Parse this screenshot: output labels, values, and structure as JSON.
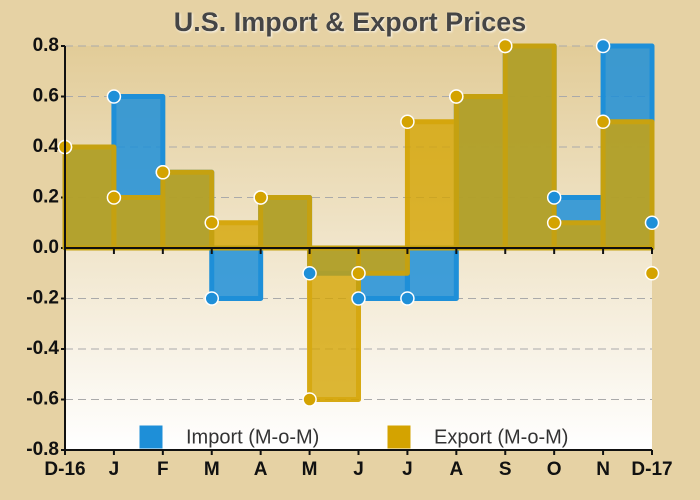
{
  "chart_data": {
    "type": "step-area",
    "title": "U.S. Import & Export Prices",
    "categories": [
      "D-16",
      "J",
      "F",
      "M",
      "A",
      "M",
      "J",
      "J",
      "A",
      "S",
      "O",
      "N",
      "D-17"
    ],
    "series": [
      {
        "name": "Import (M-o-M)",
        "color": "#1e8fd8",
        "values": [
          0.4,
          0.6,
          0.3,
          -0.2,
          0.2,
          -0.1,
          -0.2,
          -0.2,
          0.6,
          0.8,
          0.2,
          0.8,
          0.1
        ]
      },
      {
        "name": "Export (M-o-M)",
        "color": "#d4a300",
        "values": [
          0.4,
          0.2,
          0.3,
          0.1,
          0.2,
          -0.6,
          -0.1,
          0.5,
          0.6,
          0.8,
          0.1,
          0.5,
          -0.1
        ]
      }
    ],
    "ylim": [
      -0.8,
      0.8
    ],
    "yticks": [
      -0.8,
      -0.6,
      -0.4,
      -0.2,
      {
        "value": 0,
        "label": "0.0"
      },
      0.2,
      0.4,
      0.6,
      0.8
    ],
    "grid": true
  }
}
